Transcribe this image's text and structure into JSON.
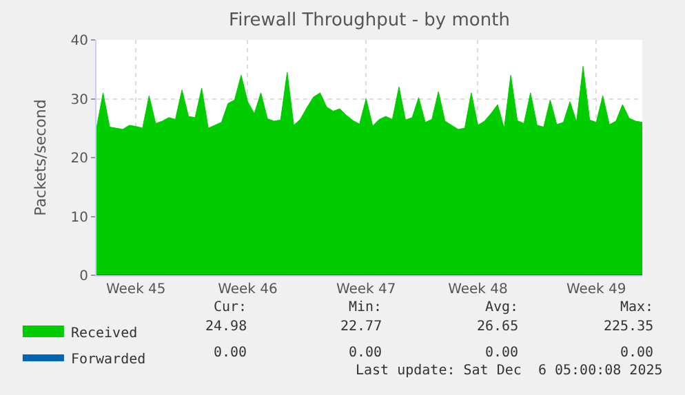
{
  "chart_data": {
    "type": "area",
    "title": "Firewall Throughput - by month",
    "ylabel": "Packets/second",
    "categories": [
      null,
      null,
      null,
      null,
      null,
      null,
      "Week 45",
      null,
      null,
      null,
      null,
      null,
      null,
      null,
      null,
      null,
      null,
      null,
      null,
      null,
      null,
      null,
      null,
      "Week 46",
      null,
      null,
      null,
      null,
      null,
      null,
      null,
      null,
      null,
      null,
      null,
      null,
      null,
      null,
      null,
      null,
      null,
      "Week 47",
      null,
      null,
      null,
      null,
      null,
      null,
      null,
      null,
      null,
      null,
      null,
      null,
      null,
      null,
      null,
      null,
      "Week 48",
      null,
      null,
      null,
      null,
      null,
      null,
      null,
      null,
      null,
      null,
      null,
      null,
      null,
      null,
      null,
      null,
      null,
      "Week 49",
      null,
      null,
      null,
      null,
      null,
      null,
      null
    ],
    "series": [
      {
        "name": "Received",
        "color": "#00cc00",
        "values": [
          25.0,
          31.0,
          25.2,
          25.0,
          24.8,
          25.5,
          25.3,
          25.0,
          30.5,
          25.8,
          26.2,
          26.8,
          26.5,
          31.5,
          27.0,
          26.8,
          31.8,
          25.0,
          25.5,
          26.0,
          29.2,
          29.8,
          34.0,
          29.5,
          27.5,
          31.0,
          26.6,
          26.2,
          26.4,
          34.5,
          25.5,
          26.5,
          28.5,
          30.3,
          31.0,
          28.6,
          27.9,
          28.3,
          27.2,
          26.3,
          25.7,
          30.0,
          25.4,
          26.5,
          27.0,
          26.5,
          32.0,
          26.4,
          26.8,
          30.2,
          26.0,
          26.5,
          31.2,
          26.2,
          25.5,
          24.8,
          25.0,
          31.0,
          25.5,
          26.2,
          27.5,
          29.0,
          25.0,
          34.0,
          26.3,
          25.8,
          31.0,
          25.5,
          25.2,
          29.8,
          25.6,
          26.0,
          29.5,
          26.1,
          35.5,
          26.4,
          26.0,
          30.5,
          25.6,
          26.2,
          29.0,
          26.7,
          26.2,
          26.0
        ]
      },
      {
        "name": "Forwarded",
        "color": "#0066b3",
        "type": "line",
        "values": [
          0,
          0,
          0,
          0,
          0,
          0,
          0,
          0,
          0,
          0,
          0,
          0,
          0,
          0,
          0,
          0,
          0,
          0,
          0,
          0,
          0,
          0,
          0,
          0,
          0,
          0,
          0,
          0,
          0,
          0,
          0,
          0,
          0,
          0,
          0,
          0,
          0,
          0,
          0,
          0,
          0,
          0,
          0,
          0,
          0,
          0,
          0,
          0,
          0,
          0,
          0,
          0,
          0,
          0,
          0,
          0,
          0,
          0,
          0,
          0,
          0,
          0,
          0,
          0,
          0,
          0,
          0,
          0,
          0,
          0,
          0,
          0,
          0,
          0,
          0,
          0,
          0,
          0,
          0,
          0,
          0,
          0,
          0,
          0
        ]
      }
    ],
    "ylim": [
      0,
      40
    ],
    "yticks": [
      0,
      10,
      20,
      30,
      40
    ],
    "grid": true,
    "legend": "bottom left",
    "annotations": [
      "Cur:",
      "Min:",
      "Avg:",
      "Max:",
      "24.98",
      "22.77",
      "26.65",
      "225.35",
      "0.00",
      "0.00",
      "0.00",
      "0.00",
      "Last update: Sat Dec  6 05:00:08 2025"
    ]
  }
}
